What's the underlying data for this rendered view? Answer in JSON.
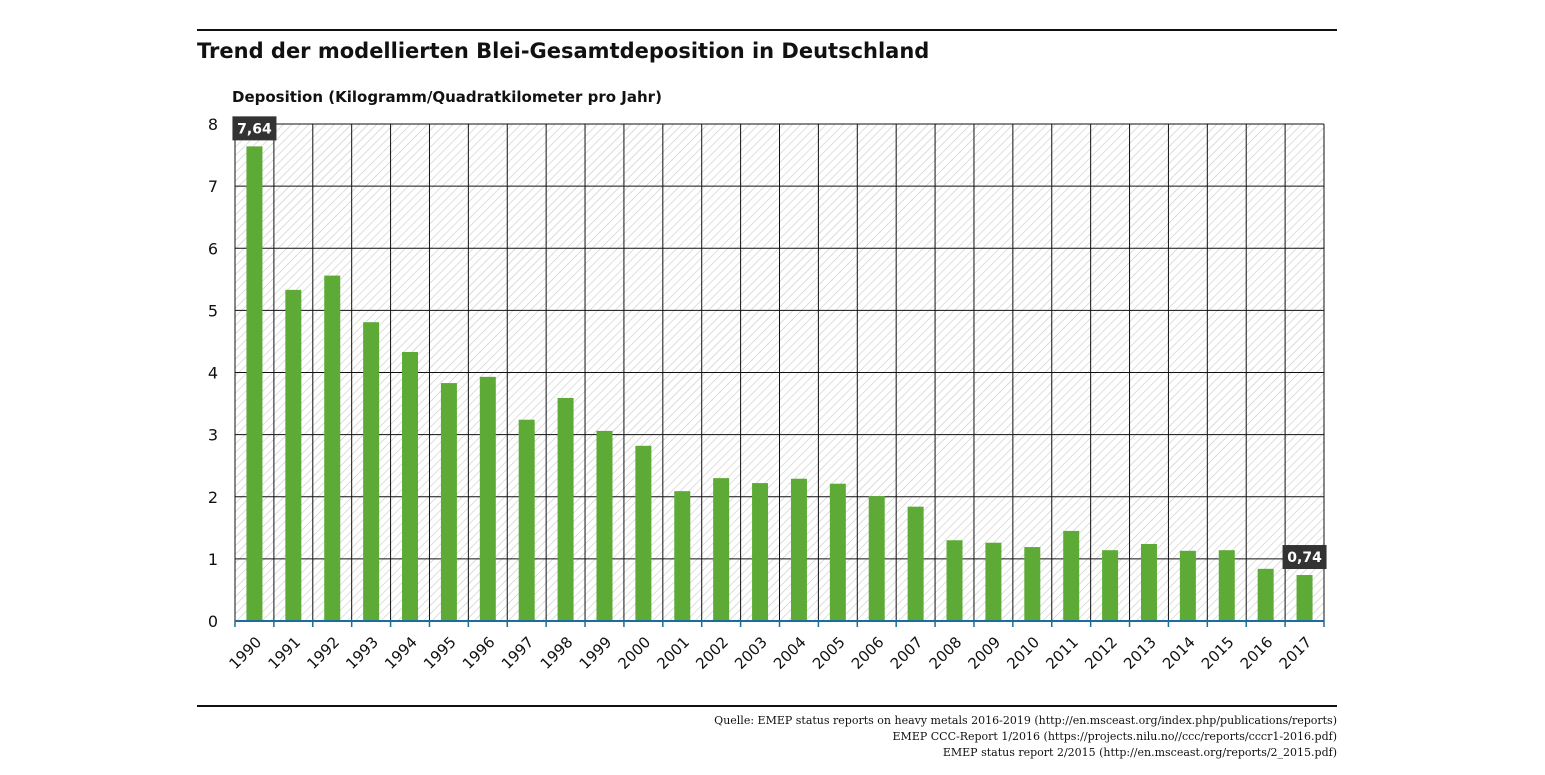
{
  "chart_data": {
    "type": "bar",
    "title": "Trend der modellierten Blei-Gesamtdeposition in Deutschland",
    "ylabel": "Deposition (Kilogramm/Quadratkilometer pro Jahr)",
    "xlabel": "",
    "ylim": [
      0,
      8
    ],
    "yticks": [
      "0",
      "1",
      "2",
      "3",
      "4",
      "5",
      "6",
      "7",
      "8"
    ],
    "grid": true,
    "categories": [
      "1990",
      "1991",
      "1992",
      "1993",
      "1994",
      "1995",
      "1996",
      "1997",
      "1998",
      "1999",
      "2000",
      "2001",
      "2002",
      "2003",
      "2004",
      "2005",
      "2006",
      "2007",
      "2008",
      "2009",
      "2010",
      "2011",
      "2012",
      "2013",
      "2014",
      "2015",
      "2016",
      "2017"
    ],
    "values": [
      7.64,
      5.33,
      5.56,
      4.81,
      4.33,
      3.83,
      3.93,
      3.24,
      3.59,
      3.06,
      2.82,
      2.09,
      2.3,
      2.22,
      2.29,
      2.21,
      2.01,
      1.84,
      1.3,
      1.26,
      1.19,
      1.45,
      1.14,
      1.24,
      1.13,
      1.14,
      0.84,
      0.74
    ],
    "data_labels": [
      {
        "index": 0,
        "text": "7,64"
      },
      {
        "index": 27,
        "text": "0,74"
      }
    ],
    "bar_color": "#5dab36",
    "label_color": "#333333"
  },
  "source": [
    "Quelle: EMEP status reports on heavy metals 2016-2019 (http://en.msceast.org/index.php/publications/reports)",
    "EMEP CCC-Report 1/2016 (https://projects.nilu.no//ccc/reports/cccr1-2016.pdf)",
    "EMEP status report 2/2015 (http://en.msceast.org/reports/2_2015.pdf)"
  ]
}
